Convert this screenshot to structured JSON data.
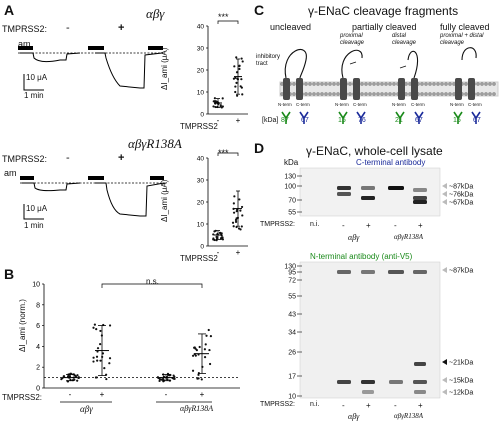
{
  "panels": {
    "A": "A",
    "B": "B",
    "C": "C",
    "D": "D"
  },
  "panelA": {
    "row1": {
      "title": "αβγ",
      "tmprss2_label": "TMPRSS2:",
      "minus": "-",
      "plus": "+",
      "am": "am",
      "scale_current": "10 μA",
      "scale_time": "1 min",
      "significance": "***",
      "ylabel": "ΔI_ami (μA)",
      "yticks": [
        "0",
        "10",
        "20",
        "30",
        "40"
      ],
      "x_group_label": "TMPRSS2",
      "x_ticks": [
        "-",
        "+"
      ]
    },
    "row2": {
      "title": "αβγR138A",
      "tmprss2_label": "TMPRSS2:",
      "minus": "-",
      "plus": "+",
      "am": "am",
      "scale_current": "10 μA",
      "scale_time": "1 min",
      "significance": "***",
      "ylabel": "ΔI_ami (μA)",
      "yticks": [
        "0",
        "10",
        "20",
        "30",
        "40"
      ],
      "x_group_label": "TMPRSS2",
      "x_ticks": [
        "-",
        "+"
      ]
    }
  },
  "panelB": {
    "ylabel": "ΔI_ami (norm.)",
    "significance": "n.s.",
    "tmprss2_label": "TMPRSS2:",
    "x_ticks": [
      "-",
      "+",
      "-",
      "+"
    ],
    "groups": [
      "αβγ",
      "αβγR138A"
    ]
  },
  "panelC": {
    "title": "γ-ENaC cleavage fragments",
    "states": [
      "uncleaved",
      "partially cleaved",
      "fully cleaved"
    ],
    "sub_proximal": "proximal cleavage",
    "sub_distal": "distal cleavage",
    "sub_both": "proximal + distal cleavage",
    "inhibitory_tract": "inhibitory tract",
    "n_term": "N-term",
    "c_term": "C-term",
    "kda_label": "[kDa]",
    "fragments": [
      "87",
      "67",
      "15",
      "76",
      "21",
      "67",
      "15",
      "67"
    ]
  },
  "panelD": {
    "title": "γ-ENaC, whole-cell lysate",
    "kda_header": "kDa",
    "top_antibody": "C-terminal antibody",
    "top_ladder": [
      "130",
      "100",
      "70",
      "55"
    ],
    "top_bands": [
      "~87kDa",
      "~76kDa",
      "~67kDa"
    ],
    "bottom_antibody": "N-terminal antibody (anti-V5)",
    "bottom_ladder": [
      "130",
      "95",
      "72",
      "55",
      "43",
      "34",
      "26",
      "17",
      "10"
    ],
    "bottom_bands": [
      "~87kDa",
      "~21kDa",
      "~15kDa",
      "~12kDa"
    ],
    "tmprss2_label": "TMPRSS2:",
    "lanes": [
      "n.i.",
      "-",
      "+",
      "-",
      "+"
    ],
    "groups": [
      "αβγ",
      "αβγR138A"
    ]
  },
  "chart_data": [
    {
      "type": "scatter",
      "title": "αβγ",
      "xlabel": "TMPRSS2",
      "ylabel": "ΔI_ami (μA)",
      "categories": [
        "-",
        "+"
      ],
      "ylim": [
        0,
        40
      ],
      "means": [
        5,
        17
      ],
      "sd": [
        2,
        8
      ],
      "significance": "***"
    },
    {
      "type": "scatter",
      "title": "αβγR138A",
      "xlabel": "TMPRSS2",
      "ylabel": "ΔI_ami (μA)",
      "categories": [
        "-",
        "+"
      ],
      "ylim": [
        0,
        40
      ],
      "means": [
        5,
        17
      ],
      "sd": [
        2,
        8
      ],
      "significance": "***"
    },
    {
      "type": "scatter",
      "ylabel": "ΔI_ami (norm.)",
      "categories": [
        "αβγ -",
        "αβγ +",
        "αβγR138A -",
        "αβγR138A +"
      ],
      "ylim": [
        0,
        10
      ],
      "means": [
        1.0,
        3.6,
        1.0,
        3.3
      ],
      "sd": [
        0.3,
        2.4,
        0.3,
        1.9
      ],
      "reference_line": 1,
      "significance": "n.s."
    }
  ]
}
